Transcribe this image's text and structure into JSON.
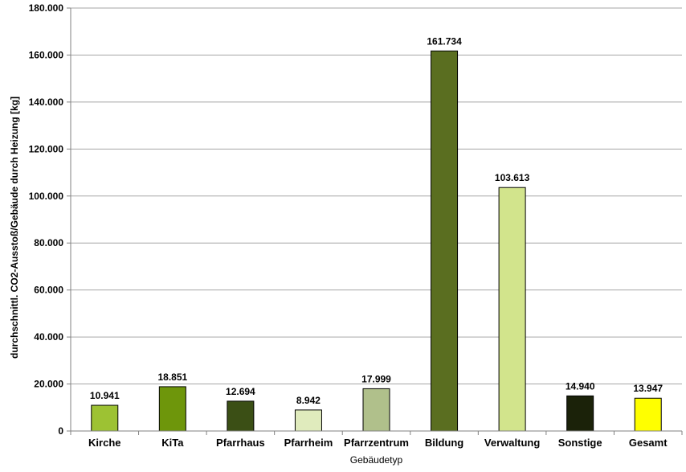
{
  "chart_data": {
    "type": "bar",
    "categories": [
      "Kirche",
      "KiTa",
      "Pfarrhaus",
      "Pfarrheim",
      "Pfarrzentrum",
      "Bildung",
      "Verwaltung",
      "Sonstige",
      "Gesamt"
    ],
    "values": [
      10941,
      18851,
      12694,
      8942,
      17999,
      161734,
      103613,
      14940,
      13947
    ],
    "value_labels": [
      "10.941",
      "18.851",
      "12.694",
      "8.942",
      "17.999",
      "161.734",
      "103.613",
      "14.940",
      "13.947"
    ],
    "colors": [
      "#9dc233",
      "#6e960b",
      "#3b4f15",
      "#e0ebbd",
      "#b0c08b",
      "#5a6e20",
      "#d2e48c",
      "#1b2209",
      "#ffff00"
    ],
    "xlabel": "Gebäudetyp",
    "ylabel": "durchschnittl. CO2-Ausstoß/Gebäude durch Heizung [kg]",
    "ylim": [
      0,
      180000
    ],
    "yticks": [
      0,
      20000,
      40000,
      60000,
      80000,
      100000,
      120000,
      140000,
      160000,
      180000
    ],
    "ytick_labels": [
      "0",
      "20.000",
      "40.000",
      "60.000",
      "80.000",
      "100.000",
      "120.000",
      "140.000",
      "160.000",
      "180.000"
    ],
    "grid": true,
    "legend": "none"
  }
}
